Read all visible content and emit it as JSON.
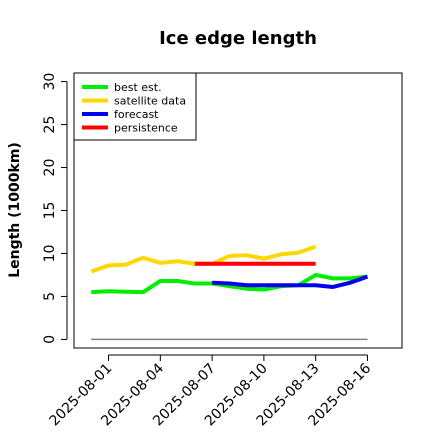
{
  "chart_data": {
    "type": "line",
    "title": "Ice edge length",
    "xlabel": "",
    "ylabel": "Length (1000km)",
    "ylim": [
      -1,
      31
    ],
    "yticks": [
      0,
      5,
      10,
      15,
      20,
      25,
      30
    ],
    "xlim": [
      "2025-07-30",
      "2025-08-18"
    ],
    "xticks": [
      "2025-08-01",
      "2025-08-04",
      "2025-08-07",
      "2025-08-10",
      "2025-08-13",
      "2025-08-16"
    ],
    "highlighted_xtick": "2025-08-07",
    "highlight_color": "#228B22",
    "legend_position": "top-left",
    "grid": false,
    "series": [
      {
        "name": "best est.",
        "color": "#00ee00",
        "points": [
          [
            "2025-07-31",
            5.5
          ],
          [
            "2025-08-01",
            5.6
          ],
          [
            "2025-08-02",
            5.55
          ],
          [
            "2025-08-03",
            5.5
          ],
          [
            "2025-08-04",
            6.8
          ],
          [
            "2025-08-05",
            6.8
          ],
          [
            "2025-08-06",
            6.5
          ],
          [
            "2025-08-07",
            6.5
          ],
          [
            "2025-08-08",
            6.2
          ],
          [
            "2025-08-09",
            5.9
          ],
          [
            "2025-08-10",
            5.8
          ],
          [
            "2025-08-11",
            6.2
          ],
          [
            "2025-08-12",
            6.3
          ],
          [
            "2025-08-13",
            7.5
          ],
          [
            "2025-08-14",
            7.1
          ],
          [
            "2025-08-15",
            7.1
          ],
          [
            "2025-08-16",
            7.3
          ]
        ]
      },
      {
        "name": "satellite data",
        "color": "#ffd700",
        "points": [
          [
            "2025-07-31",
            7.9
          ],
          [
            "2025-08-01",
            8.6
          ],
          [
            "2025-08-02",
            8.7
          ],
          [
            "2025-08-03",
            9.5
          ],
          [
            "2025-08-04",
            8.9
          ],
          [
            "2025-08-05",
            9.1
          ],
          [
            "2025-08-06",
            8.8
          ],
          [
            "2025-08-07",
            8.8
          ],
          [
            "2025-08-08",
            9.7
          ],
          [
            "2025-08-09",
            9.8
          ],
          [
            "2025-08-10",
            9.4
          ],
          [
            "2025-08-11",
            9.9
          ],
          [
            "2025-08-12",
            10.1
          ],
          [
            "2025-08-13",
            10.8
          ]
        ]
      },
      {
        "name": "forecast",
        "color": "#0000ee",
        "points": [
          [
            "2025-08-07",
            6.6
          ],
          [
            "2025-08-08",
            6.5
          ],
          [
            "2025-08-09",
            6.3
          ],
          [
            "2025-08-10",
            6.3
          ],
          [
            "2025-08-11",
            6.3
          ],
          [
            "2025-08-12",
            6.3
          ],
          [
            "2025-08-13",
            6.3
          ],
          [
            "2025-08-14",
            6.1
          ],
          [
            "2025-08-15",
            6.6
          ],
          [
            "2025-08-16",
            7.3
          ]
        ]
      },
      {
        "name": "persistence",
        "color": "#ff0000",
        "points": [
          [
            "2025-08-06",
            8.8
          ],
          [
            "2025-08-13",
            8.8
          ]
        ]
      }
    ],
    "reference_line": {
      "color": "#808080",
      "points": [
        [
          "2025-07-31",
          0
        ],
        [
          "2025-08-16",
          0
        ]
      ]
    }
  }
}
